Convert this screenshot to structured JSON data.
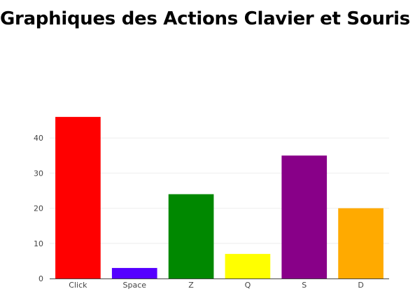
{
  "page": {
    "title": "Graphiques des Actions Clavier et Souris"
  },
  "chart_data": {
    "type": "bar",
    "title": "",
    "xlabel": "",
    "ylabel": "",
    "categories": [
      "Click",
      "Space",
      "Z",
      "Q",
      "S",
      "D"
    ],
    "values": [
      46,
      3,
      24,
      7,
      35,
      20
    ],
    "colors": [
      "#ff0000",
      "#5500ff",
      "#008800",
      "#ffff00",
      "#880088",
      "#ffaa00"
    ],
    "ylim": [
      0,
      50
    ],
    "yticks": [
      0,
      10,
      20,
      30,
      40
    ],
    "grid": true,
    "legend": "none"
  }
}
